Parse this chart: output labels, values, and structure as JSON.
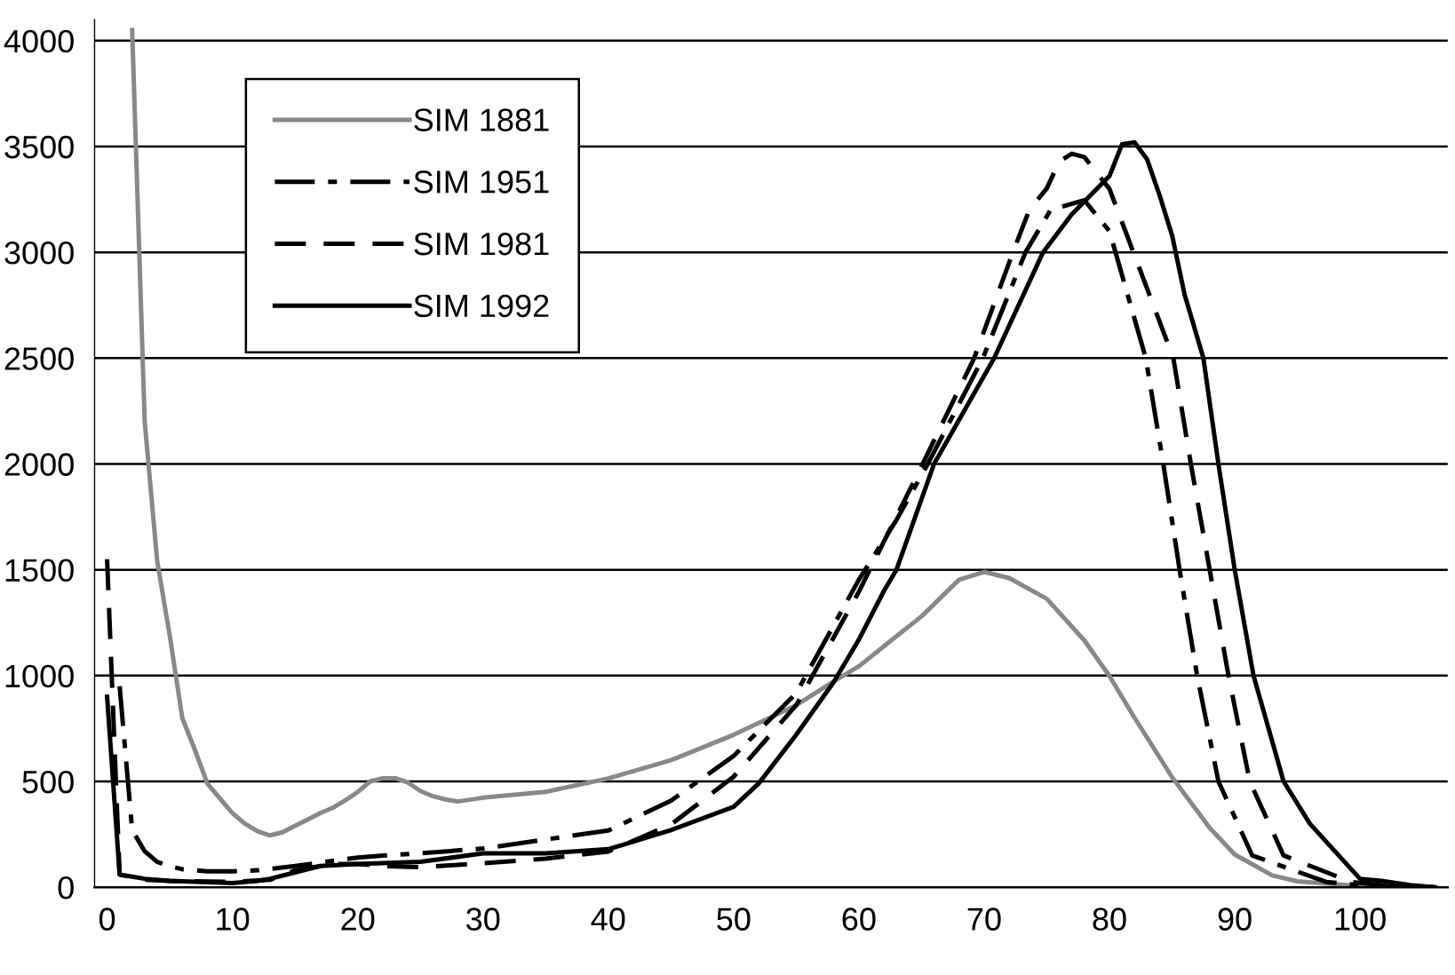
{
  "chart_data": {
    "type": "line",
    "series": [
      {
        "name": "SIM 1881",
        "color": "#888888",
        "line_style": "solid",
        "x": [
          2,
          3,
          4,
          5,
          6,
          7,
          8,
          9,
          10,
          11,
          12,
          13,
          14,
          15,
          16,
          17,
          18,
          19,
          20,
          21,
          22,
          23,
          24,
          25,
          26,
          27,
          28,
          30,
          35,
          40,
          45,
          50,
          55,
          58,
          60,
          65,
          68,
          70,
          72,
          75,
          78,
          80,
          82,
          85,
          88,
          90,
          93,
          95,
          100,
          106
        ],
        "values": [
          4050,
          2200,
          1540,
          1190,
          800,
          650,
          490,
          420,
          350,
          300,
          265,
          245,
          260,
          290,
          320,
          350,
          375,
          410,
          450,
          500,
          515,
          515,
          495,
          455,
          430,
          415,
          405,
          423,
          451,
          514,
          600,
          720,
          860,
          973,
          1044,
          1280,
          1453,
          1490,
          1461,
          1363,
          1166,
          998,
          801,
          520,
          281,
          155,
          56,
          28,
          5,
          0
        ]
      },
      {
        "name": "SIM 1951",
        "color": "#000000",
        "line_style": "dashdot",
        "x": [
          1,
          2,
          3,
          4,
          5,
          6,
          8,
          10,
          12,
          15,
          18,
          20,
          22,
          25,
          30,
          40,
          45,
          50,
          55,
          60,
          63,
          65.5,
          69.9,
          73.3,
          75.3,
          78,
          80,
          82.9,
          84.3,
          85.6,
          87,
          88.7,
          91.4,
          97.3,
          100,
          106
        ],
        "values": [
          950,
          270,
          170,
          120,
          100,
          85,
          75,
          75,
          80,
          100,
          125,
          140,
          150,
          160,
          183,
          268,
          409,
          620,
          917,
          1453,
          1735,
          2000,
          2500,
          3000,
          3200,
          3246,
          3100,
          2500,
          2000,
          1500,
          1000,
          500,
          150,
          25,
          10,
          0
        ]
      },
      {
        "name": "SIM 1981",
        "color": "#000000",
        "line_style": "dashed",
        "x": [
          0,
          1,
          3,
          5,
          10,
          13,
          15,
          18,
          20,
          22,
          25,
          30,
          35,
          40,
          45,
          50,
          55,
          60,
          65,
          69.2,
          72.3,
          73.6,
          75,
          76,
          77,
          78,
          80,
          85.1,
          86.5,
          88,
          89.5,
          91.2,
          93.9,
          99.3,
          102,
          106
        ],
        "values": [
          1550,
          60,
          35,
          30,
          25,
          35,
          80,
          110,
          110,
          100,
          95,
          113,
          135,
          169,
          296,
          522,
          860,
          1396,
          1989,
          2500,
          3000,
          3200,
          3302,
          3429,
          3466,
          3450,
          3300,
          2500,
          2000,
          1500,
          1000,
          500,
          150,
          25,
          8,
          0
        ]
      },
      {
        "name": "SIM 1992",
        "color": "#000000",
        "line_style": "solid",
        "x": [
          0,
          1,
          2,
          3,
          5,
          10,
          12,
          13,
          15,
          17,
          20,
          25,
          30,
          35,
          40,
          45,
          50,
          52,
          55,
          58,
          60,
          62,
          63,
          66,
          70.8,
          74.7,
          77,
          80,
          81,
          82,
          83,
          84,
          85,
          86,
          87.5,
          88.7,
          90,
          91.5,
          93.9,
          96,
          98.3,
          100,
          101.7,
          104,
          106
        ],
        "values": [
          900,
          60,
          50,
          40,
          30,
          20,
          30,
          40,
          70,
          100,
          110,
          120,
          160,
          160,
          180,
          270,
          380,
          490,
          720,
          970,
          1170,
          1400,
          1500,
          2000,
          2500,
          3000,
          3180,
          3360,
          3510,
          3520,
          3440,
          3270,
          3080,
          2800,
          2500,
          2000,
          1500,
          1000,
          500,
          300,
          150,
          40,
          30,
          10,
          0
        ]
      }
    ],
    "xlim": [
      -1,
      107
    ],
    "xticks": [
      0,
      10,
      20,
      30,
      40,
      50,
      60,
      70,
      80,
      90,
      100
    ],
    "ylim": [
      0,
      4100
    ],
    "yticks": [
      0,
      500,
      1000,
      1500,
      2000,
      2500,
      3000,
      3500,
      4000
    ],
    "grid": "y",
    "legend": "top left",
    "marker": "none"
  }
}
